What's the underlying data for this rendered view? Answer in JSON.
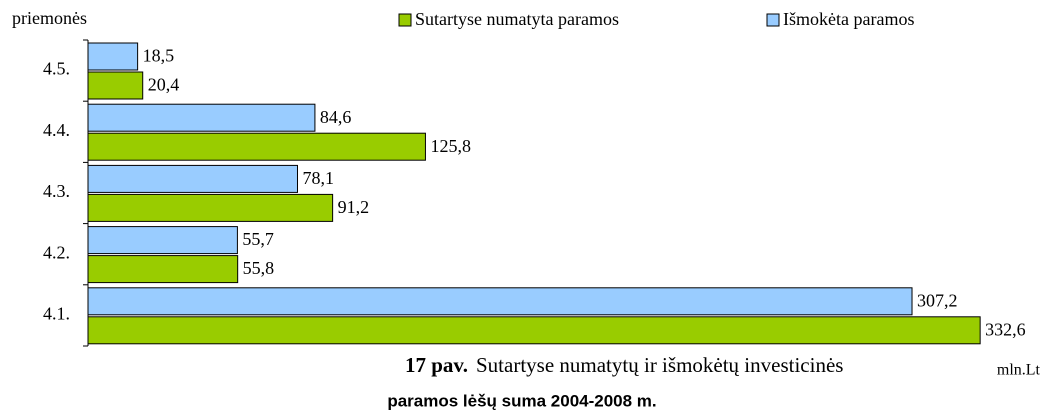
{
  "chart_data": {
    "type": "barh",
    "title_number": "17 pav.",
    "title": "Sutartyse numatytų ir išmokėtų investicinės",
    "subtitle": "paramos  lėšų suma 2004-2008 m.",
    "y_label": "priemonės",
    "x_label": "mln.Lt",
    "categories": [
      "4.1.",
      "4.2.",
      "4.3.",
      "4.4.",
      "4.5."
    ],
    "series": [
      {
        "name": "Sutartyse numatyta paramos",
        "color": "#99cc00",
        "values": [
          332.6,
          55.8,
          91.2,
          125.8,
          20.4
        ],
        "value_labels": [
          "332,6",
          "55,8",
          "91,2",
          "125,8",
          "20,4"
        ]
      },
      {
        "name": "Išmokėta paramos",
        "color": "#99ccff",
        "values": [
          307.2,
          55.7,
          78.1,
          84.6,
          18.5
        ],
        "value_labels": [
          "307,2",
          "55,7",
          "78,1",
          "84,6",
          "18,5"
        ]
      }
    ],
    "xlim": [
      0,
      340
    ],
    "legend": "top"
  }
}
